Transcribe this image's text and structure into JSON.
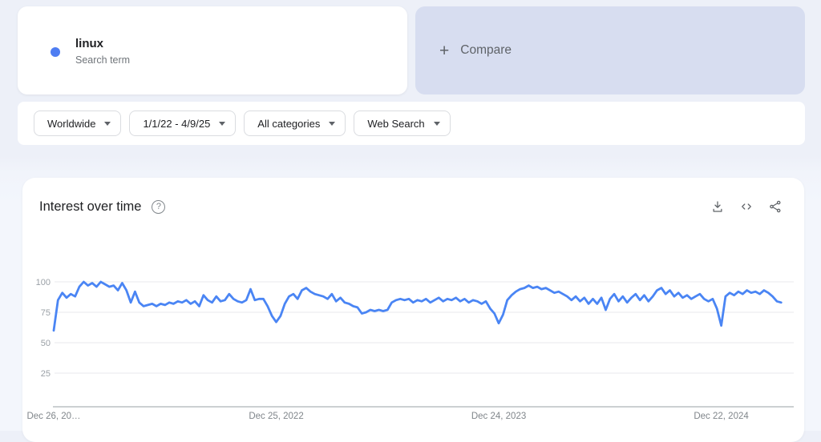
{
  "header": {
    "term_card": {
      "term": "linux",
      "subtitle": "Search term",
      "dot_color": "#4e7df2"
    },
    "compare_card": {
      "plus_glyph": "+",
      "label": "Compare",
      "bg_color": "#d7ddf0"
    }
  },
  "filters": [
    {
      "label": "Worldwide"
    },
    {
      "label": "1/1/22 - 4/9/25"
    },
    {
      "label": "All categories"
    },
    {
      "label": "Web Search"
    }
  ],
  "chart_card": {
    "title": "Interest over time",
    "help_glyph": "?",
    "action_icons": [
      "download",
      "embed-code",
      "share"
    ]
  },
  "chart_data": {
    "type": "line",
    "title": "Interest over time",
    "xlabel": "",
    "ylabel": "",
    "ylim": [
      0,
      100
    ],
    "grid": "horizontal",
    "legend_position": "none",
    "line_color": "#4a85f4",
    "y_ticks": [
      25,
      50,
      75,
      100
    ],
    "x_tick_labels": [
      "Dec 26, 20…",
      "Dec 25, 2022",
      "Dec 24, 2023",
      "Dec 22, 2024"
    ],
    "x_tick_indices": [
      0,
      52,
      104,
      156
    ],
    "x_unit": "week",
    "series": [
      {
        "name": "linux",
        "values": [
          60,
          85,
          91,
          87,
          90,
          88,
          96,
          100,
          97,
          99,
          96,
          100,
          98,
          96,
          97,
          93,
          99,
          93,
          83,
          92,
          83,
          80,
          81,
          82,
          80,
          82,
          81,
          83,
          82,
          84,
          83,
          85,
          82,
          84,
          80,
          89,
          85,
          83,
          88,
          84,
          85,
          90,
          86,
          84,
          83,
          85,
          94,
          85,
          86,
          86,
          80,
          72,
          67,
          72,
          82,
          88,
          90,
          86,
          93,
          95,
          92,
          90,
          89,
          88,
          86,
          90,
          84,
          87,
          83,
          82,
          80,
          79,
          74,
          75,
          77,
          76,
          77,
          76,
          77,
          83,
          85,
          86,
          85,
          86,
          83,
          85,
          84,
          86,
          83,
          85,
          87,
          84,
          86,
          85,
          87,
          84,
          86,
          83,
          85,
          84,
          82,
          84,
          78,
          74,
          66,
          73,
          85,
          89,
          92,
          94,
          95,
          97,
          95,
          96,
          94,
          95,
          93,
          91,
          92,
          90,
          88,
          85,
          88,
          84,
          87,
          82,
          86,
          82,
          87,
          77,
          86,
          90,
          84,
          88,
          83,
          87,
          90,
          85,
          89,
          84,
          88,
          93,
          95,
          90,
          93,
          88,
          91,
          87,
          89,
          86,
          88,
          90,
          86,
          84,
          86,
          78,
          64,
          88,
          91,
          89,
          92,
          90,
          93,
          91,
          92,
          90,
          93,
          91,
          88,
          84,
          83
        ]
      }
    ]
  }
}
